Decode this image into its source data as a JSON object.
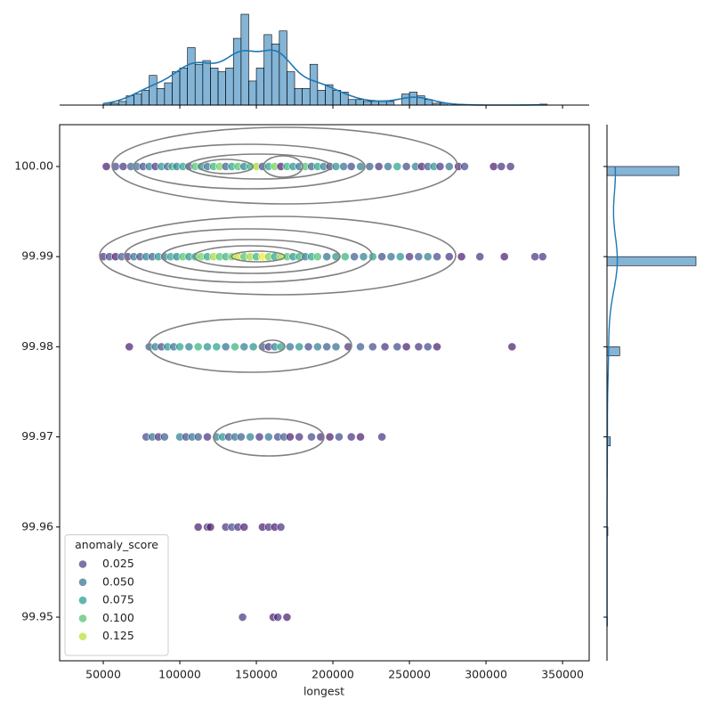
{
  "chart_data": {
    "type": "joint_scatter",
    "x_label": "longest",
    "xlim": [
      21500,
      367400
    ],
    "ylim": [
      99.94516,
      100.00464
    ],
    "xticks": [
      50000,
      100000,
      150000,
      200000,
      250000,
      300000,
      350000
    ],
    "yticks": [
      {
        "value": 100.0,
        "label": "100.00"
      },
      99.99,
      99.98,
      99.97,
      99.96,
      99.95
    ],
    "hue_norm": [
      0,
      0.14
    ],
    "legend": {
      "title": "anomaly_score",
      "corner": "lower left",
      "entries": [
        0.025,
        {
          "value": 0.05,
          "label": "0.050"
        },
        0.075,
        {
          "value": 0.1,
          "label": "0.100"
        },
        0.125
      ]
    },
    "groups": [
      {
        "y": 100.0,
        "x": [
          52000,
          58000,
          63000,
          68000,
          72000,
          76000,
          80000,
          84000,
          88000,
          92000,
          95000,
          98000,
          102000,
          106000,
          110000,
          114000,
          118000,
          122000,
          126000,
          130000,
          134000,
          138000,
          142000,
          146000,
          150000,
          154000,
          158000,
          162000,
          166000,
          170000,
          174000,
          178000,
          182000,
          186000,
          190000,
          194000,
          198000,
          202000,
          207000,
          212000,
          218000,
          224000,
          230000,
          236000,
          242000,
          248000,
          254000,
          258000,
          262000,
          266000,
          270000,
          276000,
          282000,
          286000,
          305000,
          310000,
          316000
        ],
        "hue": [
          0.01,
          0.03,
          0.02,
          0.04,
          0.05,
          0.03,
          0.06,
          0.02,
          0.07,
          0.04,
          0.09,
          0.06,
          0.08,
          0.03,
          0.1,
          0.07,
          0.05,
          0.09,
          0.11,
          0.04,
          0.08,
          0.1,
          0.06,
          0.09,
          0.12,
          0.03,
          0.08,
          0.11,
          0.01,
          0.09,
          0.07,
          0.05,
          0.1,
          0.04,
          0.08,
          0.06,
          0.02,
          0.07,
          0.05,
          0.03,
          0.06,
          0.04,
          0.02,
          0.05,
          0.08,
          0.03,
          0.06,
          0.01,
          0.04,
          0.07,
          0.02,
          0.05,
          0.01,
          0.03,
          0.01,
          0.02,
          0.02
        ]
      },
      {
        "y": 99.99,
        "x": [
          50000,
          54000,
          58000,
          62000,
          66000,
          70000,
          74000,
          78000,
          82000,
          86000,
          90000,
          94000,
          98000,
          102000,
          106000,
          110000,
          114000,
          118000,
          122000,
          126000,
          130000,
          134000,
          138000,
          142000,
          146000,
          150000,
          154000,
          158000,
          162000,
          166000,
          170000,
          174000,
          178000,
          182000,
          186000,
          190000,
          196000,
          202000,
          208000,
          214000,
          220000,
          226000,
          232000,
          238000,
          244000,
          250000,
          256000,
          262000,
          268000,
          276000,
          284000,
          296000,
          312000,
          332000,
          337000
        ],
        "hue": [
          0.02,
          0.03,
          0.01,
          0.04,
          0.02,
          0.05,
          0.03,
          0.06,
          0.04,
          0.07,
          0.05,
          0.08,
          0.06,
          0.1,
          0.07,
          0.09,
          0.11,
          0.08,
          0.12,
          0.1,
          0.09,
          0.11,
          0.13,
          0.1,
          0.12,
          0.09,
          0.14,
          0.11,
          0.08,
          0.12,
          0.1,
          0.07,
          0.09,
          0.06,
          0.08,
          0.1,
          0.05,
          0.07,
          0.09,
          0.04,
          0.06,
          0.08,
          0.03,
          0.05,
          0.07,
          0.02,
          0.04,
          0.06,
          0.03,
          0.02,
          0.01,
          0.02,
          0.01,
          0.02,
          0.02
        ]
      },
      {
        "y": 99.98,
        "x": [
          67000,
          80000,
          84000,
          88000,
          92000,
          96000,
          100000,
          106000,
          112000,
          118000,
          124000,
          130000,
          136000,
          142000,
          148000,
          154000,
          158000,
          162000,
          166000,
          172000,
          178000,
          184000,
          190000,
          196000,
          202000,
          210000,
          218000,
          226000,
          234000,
          242000,
          248000,
          256000,
          262000,
          268000,
          317000
        ],
        "hue": [
          0.01,
          0.04,
          0.06,
          0.03,
          0.07,
          0.05,
          0.08,
          0.06,
          0.09,
          0.07,
          0.08,
          0.05,
          0.09,
          0.06,
          0.07,
          0.04,
          0.02,
          0.06,
          0.08,
          0.05,
          0.07,
          0.03,
          0.06,
          0.04,
          0.05,
          0.02,
          0.04,
          0.03,
          0.02,
          0.03,
          0.01,
          0.02,
          0.03,
          0.01,
          0.01
        ]
      },
      {
        "y": 99.97,
        "x": [
          78000,
          82000,
          86000,
          90000,
          100000,
          104000,
          108000,
          112000,
          118000,
          124000,
          128000,
          132000,
          136000,
          140000,
          146000,
          152000,
          158000,
          164000,
          168000,
          172000,
          178000,
          186000,
          192000,
          198000,
          204000,
          212000,
          218000,
          232000
        ],
        "hue": [
          0.03,
          0.05,
          0.02,
          0.04,
          0.06,
          0.03,
          0.05,
          0.04,
          0.02,
          0.06,
          0.07,
          0.03,
          0.05,
          0.04,
          0.06,
          0.02,
          0.05,
          0.03,
          0.04,
          0.01,
          0.02,
          0.03,
          0.02,
          0.01,
          0.03,
          0.02,
          0.01,
          0.02
        ]
      },
      {
        "y": 99.96,
        "x": [
          112000,
          118000,
          120000,
          130000,
          134000,
          138000,
          142000,
          154000,
          158000,
          162000,
          166000
        ],
        "hue": [
          0.01,
          0.02,
          0.01,
          0.02,
          0.03,
          0.02,
          0.01,
          0.01,
          0.02,
          0.01,
          0.02
        ]
      },
      {
        "y": 99.95,
        "x": [
          141000,
          161000,
          164000,
          170000
        ],
        "hue": [
          0.02,
          0.01,
          0.02,
          0.01
        ]
      }
    ],
    "hist_x": {
      "color": "#1f77b4",
      "bins": [
        50000,
        55000,
        60000,
        65000,
        70000,
        75000,
        80000,
        85000,
        90000,
        95000,
        100000,
        105000,
        110000,
        115000,
        120000,
        125000,
        130000,
        135000,
        140000,
        145000,
        150000,
        155000,
        160000,
        165000,
        170000,
        175000,
        180000,
        185000,
        190000,
        195000,
        200000,
        205000,
        210000,
        215000,
        220000,
        225000,
        230000,
        235000,
        240000,
        245000,
        250000,
        255000,
        260000,
        265000,
        270000,
        275000,
        280000,
        285000,
        290000,
        295000,
        300000,
        305000,
        310000,
        315000,
        320000,
        325000,
        330000,
        335000,
        340000
      ],
      "counts": [
        1,
        1,
        2,
        5,
        6,
        8,
        16,
        9,
        12,
        18,
        20,
        31,
        22,
        24,
        20,
        18,
        20,
        36,
        49,
        13,
        20,
        38,
        33,
        40,
        18,
        9,
        9,
        22,
        8,
        11,
        8,
        7,
        3,
        3,
        2,
        2,
        2,
        2,
        0,
        6,
        7,
        5,
        3,
        1,
        1,
        0,
        0.5,
        0,
        0,
        0,
        0,
        0,
        0,
        0,
        0,
        0,
        0,
        0.5
      ]
    },
    "hist_y": {
      "color": "#1f77b4",
      "bins": [
        99.949,
        99.95,
        99.951,
        99.952,
        99.953,
        99.954,
        99.955,
        99.956,
        99.957,
        99.958,
        99.959,
        99.96,
        99.961,
        99.962,
        99.963,
        99.964,
        99.965,
        99.966,
        99.967,
        99.968,
        99.969,
        99.97,
        99.971,
        99.972,
        99.973,
        99.974,
        99.975,
        99.976,
        99.977,
        99.978,
        99.979,
        99.98,
        99.981,
        99.982,
        99.983,
        99.984,
        99.985,
        99.986,
        99.987,
        99.988,
        99.989,
        99.99,
        99.991,
        99.992,
        99.993,
        99.994,
        99.995,
        99.996,
        99.997,
        99.998,
        99.999,
        100.0
      ],
      "counts": [
        2,
        0,
        0,
        0,
        0,
        0,
        0,
        0,
        0,
        0,
        4,
        0,
        0,
        0,
        0,
        0,
        0,
        0,
        0,
        0,
        16,
        0,
        0,
        0,
        0,
        0,
        0,
        0,
        0,
        0,
        60,
        0,
        0,
        0,
        0,
        0,
        0,
        0,
        0,
        0,
        420,
        0,
        0,
        0,
        0,
        0,
        0,
        0,
        0,
        0,
        340
      ]
    }
  }
}
